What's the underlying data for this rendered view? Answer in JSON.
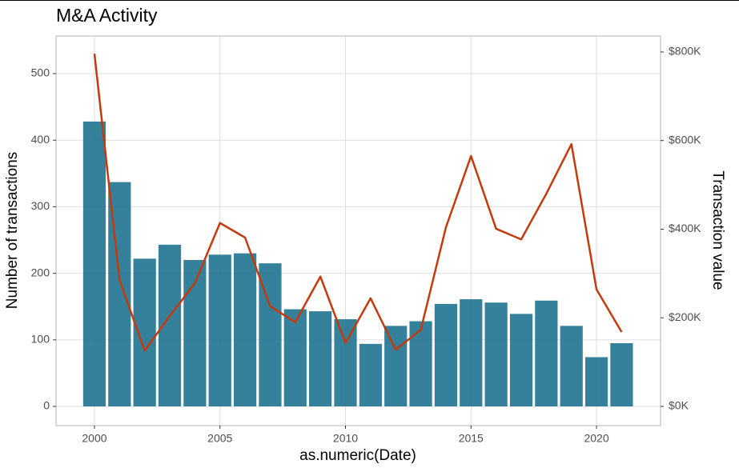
{
  "chart_data": {
    "type": "bar-line",
    "title": "M&A Activity",
    "x_label": "as.numeric(Date)",
    "y_label": "Number of transactions",
    "y2_label": "Transaction value",
    "x": [
      2000,
      2001,
      2002,
      2003,
      2004,
      2005,
      2006,
      2007,
      2008,
      2009,
      2010,
      2011,
      2012,
      2013,
      2014,
      2015,
      2016,
      2017,
      2018,
      2019,
      2020,
      2021
    ],
    "series": [
      {
        "type": "bar",
        "color": "#1f7391",
        "axis": "y",
        "values": [
          428,
          337,
          222,
          243,
          220,
          228,
          230,
          215,
          146,
          143,
          131,
          94,
          121,
          128,
          154,
          161,
          156,
          139,
          159,
          121,
          74,
          95
        ]
      },
      {
        "type": "line",
        "color": "#c33b0d",
        "axis": "y2",
        "values": [
          796,
          285,
          126,
          204,
          278,
          414,
          381,
          226,
          190,
          293,
          143,
          244,
          128,
          173,
          404,
          565,
          401,
          377,
          480,
          592,
          264,
          168
        ]
      }
    ],
    "xlim": [
      1998.47,
      2022.55
    ],
    "xticks": [
      2000,
      2005,
      2010,
      2015,
      2020
    ],
    "ylim": [
      -28.8,
      556.5
    ],
    "yticks": [
      0,
      100,
      200,
      300,
      400,
      500
    ],
    "y2lim": [
      -43.3,
      836
    ],
    "y2ticks": [
      {
        "value": 0,
        "label": "$0K"
      },
      {
        "value": 200,
        "label": "$200K"
      },
      {
        "value": 400,
        "label": "$400K"
      },
      {
        "value": 600,
        "label": "$600K"
      },
      {
        "value": 800,
        "label": "$800K"
      }
    ],
    "grid": true
  }
}
